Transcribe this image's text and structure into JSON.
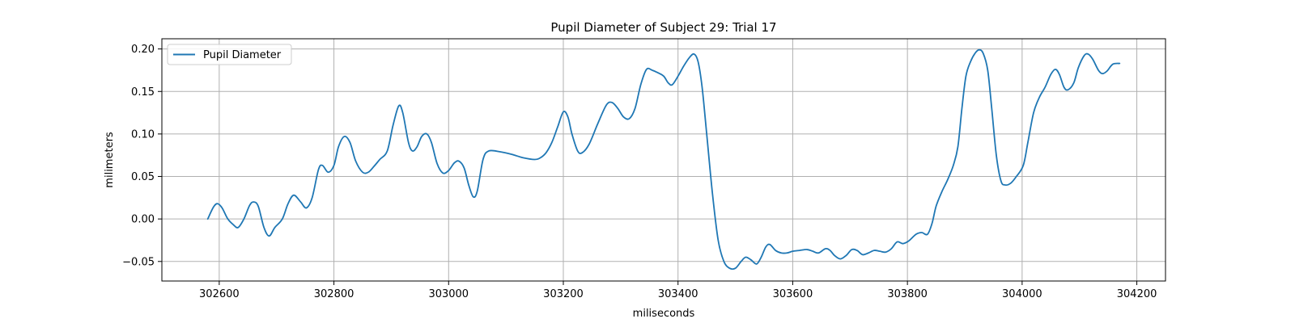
{
  "chart_data": {
    "type": "line",
    "title": "Pupil Diameter of Subject 29: Trial 17",
    "xlabel": "miliseconds",
    "ylabel": "milimeters",
    "xlim": [
      302500,
      304250
    ],
    "ylim": [
      -0.073,
      0.212
    ],
    "xticks": [
      302600,
      302800,
      303000,
      303200,
      303400,
      303600,
      303800,
      304000,
      304200
    ],
    "xtick_labels": [
      "302600",
      "302800",
      "303000",
      "303200",
      "303400",
      "303600",
      "303800",
      "304000",
      "304200"
    ],
    "yticks": [
      -0.05,
      0.0,
      0.05,
      0.1,
      0.15,
      0.2
    ],
    "ytick_labels": [
      "−0.05",
      "0.00",
      "0.05",
      "0.10",
      "0.15",
      "0.20"
    ],
    "grid": true,
    "legend_position": "upper-left",
    "series": [
      {
        "name": "Pupil Diameter",
        "color": "#1f77b4",
        "points": [
          [
            302580,
            0.0
          ],
          [
            302590,
            0.014
          ],
          [
            302597,
            0.018
          ],
          [
            302605,
            0.013
          ],
          [
            302615,
            0.0
          ],
          [
            302625,
            -0.007
          ],
          [
            302633,
            -0.01
          ],
          [
            302643,
            0.0
          ],
          [
            302653,
            0.016
          ],
          [
            302660,
            0.02
          ],
          [
            302668,
            0.015
          ],
          [
            302678,
            -0.01
          ],
          [
            302687,
            -0.02
          ],
          [
            302697,
            -0.01
          ],
          [
            302710,
            0.0
          ],
          [
            302720,
            0.018
          ],
          [
            302730,
            0.028
          ],
          [
            302742,
            0.02
          ],
          [
            302752,
            0.013
          ],
          [
            302762,
            0.025
          ],
          [
            302773,
            0.058
          ],
          [
            302780,
            0.063
          ],
          [
            302790,
            0.055
          ],
          [
            302800,
            0.063
          ],
          [
            302808,
            0.085
          ],
          [
            302818,
            0.097
          ],
          [
            302828,
            0.09
          ],
          [
            302838,
            0.068
          ],
          [
            302850,
            0.055
          ],
          [
            302860,
            0.055
          ],
          [
            302870,
            0.062
          ],
          [
            302880,
            0.07
          ],
          [
            302893,
            0.08
          ],
          [
            302903,
            0.11
          ],
          [
            302913,
            0.133
          ],
          [
            302920,
            0.125
          ],
          [
            302930,
            0.09
          ],
          [
            302937,
            0.08
          ],
          [
            302945,
            0.085
          ],
          [
            302953,
            0.097
          ],
          [
            302962,
            0.1
          ],
          [
            302970,
            0.09
          ],
          [
            302980,
            0.065
          ],
          [
            302990,
            0.054
          ],
          [
            303000,
            0.057
          ],
          [
            303010,
            0.066
          ],
          [
            303018,
            0.068
          ],
          [
            303027,
            0.06
          ],
          [
            303035,
            0.04
          ],
          [
            303043,
            0.026
          ],
          [
            303050,
            0.033
          ],
          [
            303060,
            0.07
          ],
          [
            303070,
            0.08
          ],
          [
            303090,
            0.079
          ],
          [
            303110,
            0.076
          ],
          [
            303130,
            0.072
          ],
          [
            303150,
            0.07
          ],
          [
            303160,
            0.072
          ],
          [
            303170,
            0.078
          ],
          [
            303180,
            0.09
          ],
          [
            303190,
            0.108
          ],
          [
            303200,
            0.126
          ],
          [
            303208,
            0.12
          ],
          [
            303215,
            0.1
          ],
          [
            303225,
            0.08
          ],
          [
            303233,
            0.078
          ],
          [
            303245,
            0.088
          ],
          [
            303260,
            0.112
          ],
          [
            303275,
            0.134
          ],
          [
            303285,
            0.137
          ],
          [
            303295,
            0.13
          ],
          [
            303305,
            0.12
          ],
          [
            303315,
            0.118
          ],
          [
            303325,
            0.13
          ],
          [
            303335,
            0.158
          ],
          [
            303345,
            0.176
          ],
          [
            303355,
            0.175
          ],
          [
            303365,
            0.172
          ],
          [
            303375,
            0.168
          ],
          [
            303383,
            0.16
          ],
          [
            303390,
            0.158
          ],
          [
            303400,
            0.168
          ],
          [
            303410,
            0.18
          ],
          [
            303420,
            0.19
          ],
          [
            303428,
            0.194
          ],
          [
            303435,
            0.185
          ],
          [
            303442,
            0.155
          ],
          [
            303450,
            0.1
          ],
          [
            303460,
            0.03
          ],
          [
            303470,
            -0.025
          ],
          [
            303480,
            -0.05
          ],
          [
            303490,
            -0.058
          ],
          [
            303500,
            -0.058
          ],
          [
            303510,
            -0.05
          ],
          [
            303518,
            -0.045
          ],
          [
            303527,
            -0.048
          ],
          [
            303537,
            -0.053
          ],
          [
            303545,
            -0.045
          ],
          [
            303553,
            -0.033
          ],
          [
            303560,
            -0.03
          ],
          [
            303570,
            -0.037
          ],
          [
            303580,
            -0.04
          ],
          [
            303590,
            -0.04
          ],
          [
            303600,
            -0.038
          ],
          [
            303612,
            -0.037
          ],
          [
            303625,
            -0.036
          ],
          [
            303635,
            -0.038
          ],
          [
            303645,
            -0.04
          ],
          [
            303657,
            -0.035
          ],
          [
            303665,
            -0.037
          ],
          [
            303673,
            -0.043
          ],
          [
            303683,
            -0.047
          ],
          [
            303693,
            -0.043
          ],
          [
            303703,
            -0.036
          ],
          [
            303712,
            -0.037
          ],
          [
            303722,
            -0.042
          ],
          [
            303732,
            -0.04
          ],
          [
            303742,
            -0.037
          ],
          [
            303752,
            -0.038
          ],
          [
            303762,
            -0.039
          ],
          [
            303772,
            -0.035
          ],
          [
            303782,
            -0.027
          ],
          [
            303792,
            -0.029
          ],
          [
            303802,
            -0.026
          ],
          [
            303815,
            -0.018
          ],
          [
            303825,
            -0.016
          ],
          [
            303835,
            -0.018
          ],
          [
            303843,
            -0.005
          ],
          [
            303850,
            0.015
          ],
          [
            303860,
            0.032
          ],
          [
            303870,
            0.046
          ],
          [
            303880,
            0.063
          ],
          [
            303888,
            0.085
          ],
          [
            303895,
            0.13
          ],
          [
            303902,
            0.168
          ],
          [
            303910,
            0.185
          ],
          [
            303918,
            0.195
          ],
          [
            303925,
            0.199
          ],
          [
            303932,
            0.195
          ],
          [
            303940,
            0.175
          ],
          [
            303947,
            0.13
          ],
          [
            303955,
            0.075
          ],
          [
            303963,
            0.045
          ],
          [
            303970,
            0.04
          ],
          [
            303980,
            0.042
          ],
          [
            303990,
            0.05
          ],
          [
            304002,
            0.063
          ],
          [
            304010,
            0.09
          ],
          [
            304020,
            0.125
          ],
          [
            304030,
            0.143
          ],
          [
            304040,
            0.155
          ],
          [
            304050,
            0.17
          ],
          [
            304058,
            0.176
          ],
          [
            304065,
            0.17
          ],
          [
            304073,
            0.155
          ],
          [
            304080,
            0.152
          ],
          [
            304090,
            0.16
          ],
          [
            304098,
            0.178
          ],
          [
            304108,
            0.192
          ],
          [
            304115,
            0.194
          ],
          [
            304123,
            0.188
          ],
          [
            304133,
            0.175
          ],
          [
            304140,
            0.171
          ],
          [
            304148,
            0.174
          ],
          [
            304158,
            0.182
          ],
          [
            304170,
            0.183
          ]
        ]
      }
    ]
  }
}
